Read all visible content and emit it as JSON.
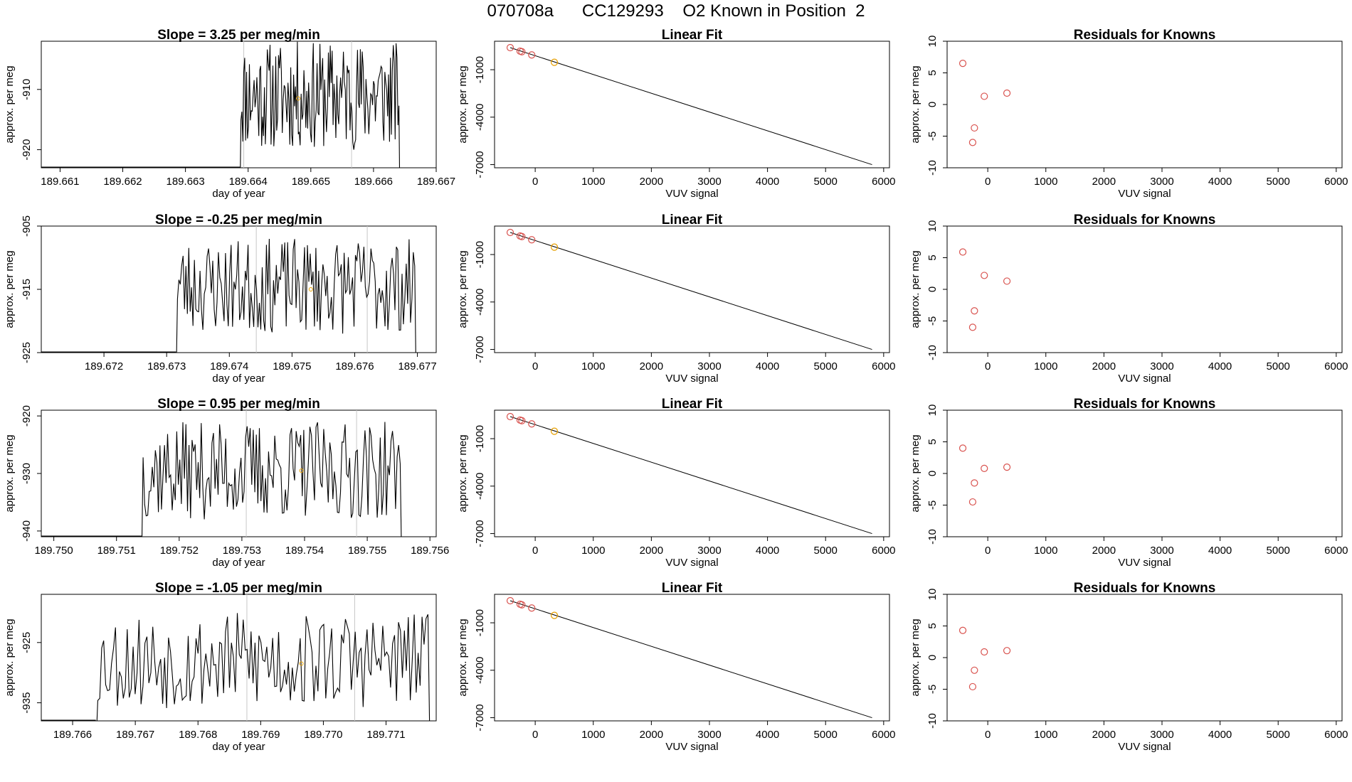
{
  "page_title": "070708a      CC129293    O2 Known in Position  2",
  "colors": {
    "line": "#000000",
    "known_point": "#d9534f",
    "unknown_point": "#e69f00",
    "marker_line": "#c8c8c8"
  },
  "chart_data": [
    {
      "type": "line",
      "title": "Slope =  3.25  per meg/min",
      "xlabel": "day of year",
      "ylabel": "approx. per meg",
      "xlim": [
        189.6607,
        189.667
      ],
      "ylim": [
        -923.0,
        -902.0
      ],
      "xticks": [
        189.661,
        189.662,
        189.663,
        189.664,
        189.665,
        189.666,
        189.667
      ],
      "xtick_labels": [
        "189.661",
        "189.662",
        "189.663",
        "189.664",
        "189.665",
        "189.666",
        "189.667"
      ],
      "yticks": [
        -910,
        -920
      ],
      "ytick_labels": [
        "-910",
        "-920"
      ],
      "markers_x": [
        189.66393,
        189.66565
      ],
      "trace_start": 189.66387,
      "trace_end": 189.66642,
      "trace_seed": 11,
      "trace_mid": -911.0,
      "trace_amp": 9.0,
      "highlight_point": {
        "x": 189.6648,
        "y": -911.5
      }
    },
    {
      "type": "scatter",
      "title": "Linear Fit",
      "xlabel": "VUV signal",
      "ylabel": "approx. per meg",
      "xlim": [
        -700,
        6100
      ],
      "ylim": [
        -7200,
        800
      ],
      "xticks": [
        0,
        1000,
        2000,
        3000,
        4000,
        5000,
        6000
      ],
      "xtick_labels": [
        "0",
        "1000",
        "2000",
        "3000",
        "4000",
        "5000",
        "6000"
      ],
      "yticks": [
        -1000,
        -4000,
        -7000
      ],
      "ytick_labels": [
        "-1000",
        "-4000",
        "-7000"
      ],
      "fit_line": {
        "x": [
          -430,
          5800
        ],
        "y": [
          396,
          -7000
        ]
      },
      "points": {
        "x": [
          -430,
          -260,
          -230,
          -60
        ],
        "y": [
          394,
          173,
          136,
          -66
        ]
      },
      "highlight_point": {
        "x": 330,
        "y": -530
      }
    },
    {
      "type": "scatter",
      "title": "Residuals for Knowns",
      "xlabel": "VUV signal",
      "ylabel": "approx. per meg",
      "xlim": [
        -700,
        6100
      ],
      "ylim": [
        -10,
        10
      ],
      "xticks": [
        0,
        1000,
        2000,
        3000,
        4000,
        5000,
        6000
      ],
      "xtick_labels": [
        "0",
        "1000",
        "2000",
        "3000",
        "4000",
        "5000",
        "6000"
      ],
      "yticks": [
        10,
        5,
        0,
        -5,
        -10
      ],
      "ytick_labels": [
        "10",
        "5",
        "0",
        "-5",
        "-10"
      ],
      "points": {
        "x": [
          -430,
          -230,
          -260,
          -60,
          330
        ],
        "y": [
          6.5,
          -3.7,
          -6.0,
          1.3,
          1.8
        ]
      }
    },
    {
      "type": "line",
      "title": "Slope =  -0.25  per meg/min",
      "xlabel": "day of year",
      "ylabel": "approx. per meg",
      "xlim": [
        189.671,
        189.6773
      ],
      "ylim": [
        -925.0,
        -905.0
      ],
      "xticks": [
        189.672,
        189.673,
        189.674,
        189.675,
        189.676,
        189.677
      ],
      "xtick_labels": [
        "189.672",
        "189.673",
        "189.674",
        "189.675",
        "189.676",
        "189.677"
      ],
      "yticks": [
        -905,
        -915,
        -925
      ],
      "ytick_labels": [
        "-905",
        "-915",
        "-925"
      ],
      "markers_x": [
        189.67443,
        189.6762
      ],
      "trace_start": 189.67315,
      "trace_end": 189.67698,
      "trace_seed": 23,
      "trace_mid": -914.5,
      "trace_amp": 7.5,
      "highlight_point": {
        "x": 189.6753,
        "y": -915.0
      }
    },
    {
      "type": "scatter",
      "title": "Linear Fit",
      "xlabel": "VUV signal",
      "ylabel": "approx. per meg",
      "xlim": [
        -700,
        6100
      ],
      "ylim": [
        -7200,
        800
      ],
      "xticks": [
        0,
        1000,
        2000,
        3000,
        4000,
        5000,
        6000
      ],
      "xtick_labels": [
        "0",
        "1000",
        "2000",
        "3000",
        "4000",
        "5000",
        "6000"
      ],
      "yticks": [
        -1000,
        -4000,
        -7000
      ],
      "ytick_labels": [
        "-1000",
        "-4000",
        "-7000"
      ],
      "fit_line": {
        "x": [
          -430,
          5800
        ],
        "y": [
          396,
          -7000
        ]
      },
      "points": {
        "x": [
          -430,
          -260,
          -230,
          -60
        ],
        "y": [
          394,
          173,
          136,
          -66
        ]
      },
      "highlight_point": {
        "x": 330,
        "y": -530
      }
    },
    {
      "type": "scatter",
      "title": "Residuals for Knowns",
      "xlabel": "VUV signal",
      "ylabel": "approx. per meg",
      "xlim": [
        -700,
        6100
      ],
      "ylim": [
        -10,
        10
      ],
      "xticks": [
        0,
        1000,
        2000,
        3000,
        4000,
        5000,
        6000
      ],
      "xtick_labels": [
        "0",
        "1000",
        "2000",
        "3000",
        "4000",
        "5000",
        "6000"
      ],
      "yticks": [
        10,
        5,
        0,
        -5,
        -10
      ],
      "ytick_labels": [
        "10",
        "5",
        "0",
        "-5",
        "-10"
      ],
      "points": {
        "x": [
          -430,
          -230,
          -260,
          -60,
          330
        ],
        "y": [
          5.9,
          -3.4,
          -6.0,
          2.2,
          1.3
        ]
      }
    },
    {
      "type": "line",
      "title": "Slope =  0.95  per meg/min",
      "xlabel": "day of year",
      "ylabel": "approx. per meg",
      "xlim": [
        189.7498,
        189.7561
      ],
      "ylim": [
        -941.0,
        -919.0
      ],
      "xticks": [
        189.75,
        189.751,
        189.752,
        189.753,
        189.754,
        189.755,
        189.756
      ],
      "xtick_labels": [
        "189.750",
        "189.751",
        "189.752",
        "189.753",
        "189.754",
        "189.755",
        "189.756"
      ],
      "yticks": [
        -920,
        -930,
        -940
      ],
      "ytick_labels": [
        "-920",
        "-930",
        "-940"
      ],
      "markers_x": [
        189.75307,
        189.75483
      ],
      "trace_start": 189.7514,
      "trace_end": 189.75555,
      "trace_seed": 37,
      "trace_mid": -929.5,
      "trace_amp": 8.5,
      "highlight_point": {
        "x": 189.75395,
        "y": -929.5
      }
    },
    {
      "type": "scatter",
      "title": "Linear Fit",
      "xlabel": "VUV signal",
      "ylabel": "approx. per meg",
      "xlim": [
        -700,
        6100
      ],
      "ylim": [
        -7200,
        800
      ],
      "xticks": [
        0,
        1000,
        2000,
        3000,
        4000,
        5000,
        6000
      ],
      "xtick_labels": [
        "0",
        "1000",
        "2000",
        "3000",
        "4000",
        "5000",
        "6000"
      ],
      "yticks": [
        -1000,
        -4000,
        -7000
      ],
      "ytick_labels": [
        "-1000",
        "-4000",
        "-7000"
      ],
      "fit_line": {
        "x": [
          -430,
          5800
        ],
        "y": [
          396,
          -7000
        ]
      },
      "points": {
        "x": [
          -430,
          -260,
          -230,
          -60
        ],
        "y": [
          394,
          173,
          136,
          -66
        ]
      },
      "highlight_point": {
        "x": 330,
        "y": -530
      }
    },
    {
      "type": "scatter",
      "title": "Residuals for Knowns",
      "xlabel": "VUV signal",
      "ylabel": "approx. per meg",
      "xlim": [
        -700,
        6100
      ],
      "ylim": [
        -10,
        10
      ],
      "xticks": [
        0,
        1000,
        2000,
        3000,
        4000,
        5000,
        6000
      ],
      "xtick_labels": [
        "0",
        "1000",
        "2000",
        "3000",
        "4000",
        "5000",
        "6000"
      ],
      "yticks": [
        10,
        5,
        0,
        -5,
        -10
      ],
      "ytick_labels": [
        "10",
        "5",
        "0",
        "-5",
        "-10"
      ],
      "points": {
        "x": [
          -430,
          -230,
          -260,
          -60,
          330
        ],
        "y": [
          4.0,
          -1.5,
          -4.5,
          0.8,
          1.0
        ]
      }
    },
    {
      "type": "line",
      "title": "Slope =  -1.05  per meg/min",
      "xlabel": "day of year",
      "ylabel": "approx. per meg",
      "xlim": [
        189.7655,
        189.7718
      ],
      "ylim": [
        -938.0,
        -917.0
      ],
      "xticks": [
        189.766,
        189.767,
        189.768,
        189.769,
        189.77,
        189.771
      ],
      "xtick_labels": [
        "189.766",
        "189.767",
        "189.768",
        "189.769",
        "189.770",
        "189.771"
      ],
      "yticks": [
        -925,
        -935
      ],
      "ytick_labels": [
        "-925",
        "-935"
      ],
      "markers_x": [
        189.76878,
        189.7705
      ],
      "trace_start": 189.76637,
      "trace_end": 189.7717,
      "trace_seed": 53,
      "trace_mid": -928.0,
      "trace_amp": 8.0,
      "highlight_point": {
        "x": 189.76965,
        "y": -928.5
      }
    },
    {
      "type": "scatter",
      "title": "Linear Fit",
      "xlabel": "VUV signal",
      "ylabel": "approx. per meg",
      "xlim": [
        -700,
        6100
      ],
      "ylim": [
        -7200,
        800
      ],
      "xticks": [
        0,
        1000,
        2000,
        3000,
        4000,
        5000,
        6000
      ],
      "xtick_labels": [
        "0",
        "1000",
        "2000",
        "3000",
        "4000",
        "5000",
        "6000"
      ],
      "yticks": [
        -1000,
        -4000,
        -7000
      ],
      "ytick_labels": [
        "-1000",
        "-4000",
        "-7000"
      ],
      "fit_line": {
        "x": [
          -430,
          5800
        ],
        "y": [
          396,
          -7000
        ]
      },
      "points": {
        "x": [
          -430,
          -260,
          -230,
          -60
        ],
        "y": [
          394,
          173,
          136,
          -66
        ]
      },
      "highlight_point": {
        "x": 330,
        "y": -530
      }
    },
    {
      "type": "scatter",
      "title": "Residuals for Knowns",
      "xlabel": "VUV signal",
      "ylabel": "approx. per meg",
      "xlim": [
        -700,
        6100
      ],
      "ylim": [
        -10,
        10
      ],
      "xticks": [
        0,
        1000,
        2000,
        3000,
        4000,
        5000,
        6000
      ],
      "xtick_labels": [
        "0",
        "1000",
        "2000",
        "3000",
        "4000",
        "5000",
        "6000"
      ],
      "yticks": [
        10,
        5,
        0,
        -5,
        -10
      ],
      "ytick_labels": [
        "10",
        "5",
        "0",
        "-5",
        "-10"
      ],
      "points": {
        "x": [
          -430,
          -230,
          -260,
          -60,
          330
        ],
        "y": [
          4.3,
          -2.0,
          -4.6,
          0.9,
          1.1
        ]
      }
    }
  ]
}
